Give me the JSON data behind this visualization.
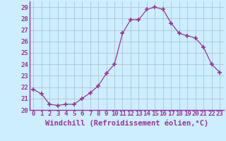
{
  "x": [
    0,
    1,
    2,
    3,
    4,
    5,
    6,
    7,
    8,
    9,
    10,
    11,
    12,
    13,
    14,
    15,
    16,
    17,
    18,
    19,
    20,
    21,
    22,
    23
  ],
  "y": [
    21.8,
    21.4,
    20.5,
    20.4,
    20.5,
    20.5,
    21.0,
    21.5,
    22.1,
    23.2,
    24.0,
    26.7,
    27.9,
    27.9,
    28.8,
    29.0,
    28.8,
    27.6,
    26.7,
    26.5,
    26.3,
    25.5,
    24.0,
    23.3
  ],
  "line_color": "#993399",
  "marker": "+",
  "marker_size": 4,
  "marker_lw": 1.2,
  "bg_color": "#cceeff",
  "grid_color": "#aabbcc",
  "xlabel": "Windchill (Refroidissement éolien,°C)",
  "ylim": [
    20,
    29.5
  ],
  "xlim": [
    -0.5,
    23.5
  ],
  "yticks": [
    20,
    21,
    22,
    23,
    24,
    25,
    26,
    27,
    28,
    29
  ],
  "xticks": [
    0,
    1,
    2,
    3,
    4,
    5,
    6,
    7,
    8,
    9,
    10,
    11,
    12,
    13,
    14,
    15,
    16,
    17,
    18,
    19,
    20,
    21,
    22,
    23
  ],
  "tick_color": "#993399",
  "axis_color": "#993399",
  "tick_label_fontsize": 6.5,
  "xlabel_fontsize": 7.5
}
